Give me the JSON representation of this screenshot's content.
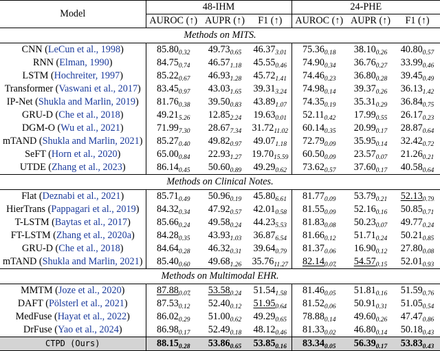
{
  "header": {
    "model": "Model",
    "group1": "48-IHM",
    "group2": "24-PHE",
    "metrics": [
      "AUROC (↑)",
      "AUPR (↑)",
      "F1 (↑)",
      "AUROC (↑)",
      "AUPR (↑)",
      "F1 (↑)"
    ]
  },
  "sections": [
    {
      "title": "Methods on MITS.",
      "rows": [
        {
          "name": "CNN",
          "cite": "LeCun et al., 1998",
          "cells": [
            [
              "85.80",
              "0.32"
            ],
            [
              "49.73",
              "0.65"
            ],
            [
              "46.37",
              "3.01"
            ],
            [
              "75.36",
              "0.18"
            ],
            [
              "38.10",
              "0.26"
            ],
            [
              "40.80",
              "0.57"
            ]
          ]
        },
        {
          "name": "RNN",
          "cite": "Elman, 1990",
          "cells": [
            [
              "84.75",
              "0.74"
            ],
            [
              "46.57",
              "1.18"
            ],
            [
              "45.55",
              "0.46"
            ],
            [
              "74.90",
              "0.34"
            ],
            [
              "36.76",
              "0.27"
            ],
            [
              "33.99",
              "0.46"
            ]
          ]
        },
        {
          "name": "LSTM",
          "cite": "Hochreiter, 1997",
          "cells": [
            [
              "85.22",
              "0.67"
            ],
            [
              "46.93",
              "1.28"
            ],
            [
              "45.72",
              "1.41"
            ],
            [
              "74.46",
              "0.23"
            ],
            [
              "36.80",
              "0.28"
            ],
            [
              "39.45",
              "0.49"
            ]
          ]
        },
        {
          "name": "Transformer",
          "cite": "Vaswani et al., 2017",
          "cells": [
            [
              "83.45",
              "0.97"
            ],
            [
              "43.03",
              "1.65"
            ],
            [
              "39.31",
              "3.24"
            ],
            [
              "74.98",
              "0.14"
            ],
            [
              "39.37",
              "0.26"
            ],
            [
              "36.13",
              "1.42"
            ]
          ]
        },
        {
          "name": "IP-Net",
          "cite": "Shukla and Marlin, 2019",
          "cells": [
            [
              "81.76",
              "0.38"
            ],
            [
              "39.50",
              "0.83"
            ],
            [
              "43.89",
              "1.07"
            ],
            [
              "74.35",
              "0.19"
            ],
            [
              "35.31",
              "0.29"
            ],
            [
              "36.84",
              "0.75"
            ]
          ]
        },
        {
          "name": "GRU-D",
          "cite": "Che et al., 2018",
          "cells": [
            [
              "49.21",
              "5.26"
            ],
            [
              "12.85",
              "2.24"
            ],
            [
              "19.63",
              "0.01"
            ],
            [
              "52.11",
              "0.42"
            ],
            [
              "17.99",
              "0.55"
            ],
            [
              "26.17",
              "0.23"
            ]
          ]
        },
        {
          "name": "DGM-O",
          "cite": "Wu et al., 2021",
          "cells": [
            [
              "71.99",
              "7.30"
            ],
            [
              "28.67",
              "7.34"
            ],
            [
              "31.72",
              "11.02"
            ],
            [
              "60.14",
              "0.35"
            ],
            [
              "20.99",
              "0.17"
            ],
            [
              "28.87",
              "0.64"
            ]
          ]
        },
        {
          "name": "mTAND",
          "cite": "Shukla and Marlin, 2021",
          "cells": [
            [
              "85.27",
              "0.40"
            ],
            [
              "49.82",
              "0.97"
            ],
            [
              "49.07",
              "1.18"
            ],
            [
              "72.79",
              "0.09"
            ],
            [
              "35.95",
              "0.14"
            ],
            [
              "32.42",
              "0.72"
            ]
          ]
        },
        {
          "name": "SeFT",
          "cite": "Horn et al., 2020",
          "cells": [
            [
              "65.00",
              "0.84"
            ],
            [
              "22.93",
              "1.27"
            ],
            [
              "19.70",
              "15.59"
            ],
            [
              "60.50",
              "0.09"
            ],
            [
              "23.57",
              "0.07"
            ],
            [
              "21.26",
              "0.21"
            ]
          ]
        },
        {
          "name": "UTDE",
          "cite": "Zhang et al., 2023",
          "cells": [
            [
              "86.14",
              "0.45"
            ],
            [
              "50.60",
              "0.89"
            ],
            [
              "49.29",
              "0.62"
            ],
            [
              "73.62",
              "0.57"
            ],
            [
              "37.60",
              "0.17"
            ],
            [
              "40.58",
              "0.64"
            ]
          ]
        }
      ]
    },
    {
      "title": "Methods on Clinical Notes.",
      "rows": [
        {
          "name": "Flat",
          "cite": "Deznabi et al., 2021",
          "cells": [
            [
              "85.71",
              "0.49"
            ],
            [
              "50.96",
              "0.19"
            ],
            [
              "45.80",
              "6.61"
            ],
            [
              "81.77",
              "0.09"
            ],
            [
              "53.79",
              "0.21"
            ],
            [
              "52.13",
              "0.79",
              "u"
            ]
          ]
        },
        {
          "name": "HierTrans",
          "cite": "Pappagari et al., 2019",
          "cells": [
            [
              "84.32",
              "0.34"
            ],
            [
              "47.92",
              "0.57"
            ],
            [
              "42.01",
              "0.58"
            ],
            [
              "81.55",
              "0.09"
            ],
            [
              "52.16",
              "0.16"
            ],
            [
              "50.85",
              "0.71"
            ]
          ]
        },
        {
          "name": "T-LSTM",
          "cite": "Baytas et al., 2017",
          "cells": [
            [
              "85.66",
              "0.24"
            ],
            [
              "49.58",
              "0.24"
            ],
            [
              "44.23",
              "5.53"
            ],
            [
              "81.83",
              "0.08"
            ],
            [
              "50.23",
              "0.07"
            ],
            [
              "49.77",
              "0.24"
            ]
          ]
        },
        {
          "name": "FT-LSTM",
          "cite": "Zhang et al., 2020a",
          "cells": [
            [
              "84.28",
              "0.35"
            ],
            [
              "43.93",
              "1.03"
            ],
            [
              "36.87",
              "6.54"
            ],
            [
              "81.66",
              "0.12"
            ],
            [
              "51.71",
              "0.24"
            ],
            [
              "50.21",
              "0.85"
            ]
          ]
        },
        {
          "name": "GRU-D",
          "cite": "Che et al., 2018",
          "cells": [
            [
              "84.64",
              "0.28"
            ],
            [
              "46.32",
              "0.31"
            ],
            [
              "39.64",
              "0.79"
            ],
            [
              "81.37",
              "0.06"
            ],
            [
              "16.90",
              "0.12"
            ],
            [
              "27.80",
              "0.08"
            ]
          ]
        },
        {
          "name": "mTAND",
          "cite": "Shukla and Marlin, 2021",
          "cells": [
            [
              "85.40",
              "0.60"
            ],
            [
              "49.68",
              "1.26"
            ],
            [
              "35.76",
              "11.27"
            ],
            [
              "82.14",
              "0.07",
              "u"
            ],
            [
              "54.57",
              "0.15",
              "u"
            ],
            [
              "52.01",
              "0.93"
            ]
          ]
        }
      ]
    },
    {
      "title": "Methods on Multimodal EHR.",
      "rows": [
        {
          "name": "MMTM",
          "cite": "Joze et al., 2020",
          "cells": [
            [
              "87.88",
              "0.07",
              "u"
            ],
            [
              "53.58",
              "0.24",
              "u"
            ],
            [
              "51.54",
              "1.58"
            ],
            [
              "81.46",
              "0.05"
            ],
            [
              "51.81",
              "0.16"
            ],
            [
              "51.59",
              "0.76"
            ]
          ]
        },
        {
          "name": "DAFT",
          "cite": "Pölsterl et al., 2021",
          "cells": [
            [
              "87.53",
              "0.12"
            ],
            [
              "52.40",
              "0.12"
            ],
            [
              "51.95",
              "0.64",
              "u"
            ],
            [
              "81.52",
              "0.06"
            ],
            [
              "50.91",
              "0.31"
            ],
            [
              "51.05",
              "0.54"
            ]
          ]
        },
        {
          "name": "MedFuse",
          "cite": "Hayat et al., 2022",
          "cells": [
            [
              "86.02",
              "0.29"
            ],
            [
              "51.00",
              "0.62"
            ],
            [
              "49.29",
              "0.65"
            ],
            [
              "78.88",
              "0.14"
            ],
            [
              "49.60",
              "0.26"
            ],
            [
              "47.47",
              "0.86"
            ]
          ]
        },
        {
          "name": "DrFuse",
          "cite": "Yao et al., 2024",
          "cells": [
            [
              "86.98",
              "0.17"
            ],
            [
              "52.49",
              "0.18"
            ],
            [
              "48.12",
              "0.46"
            ],
            [
              "81.33",
              "0.02"
            ],
            [
              "46.80",
              "0.14"
            ],
            [
              "50.18",
              "0.43"
            ]
          ]
        }
      ]
    }
  ],
  "ours": {
    "name": "CTPD (Ours)",
    "cells": [
      [
        "88.15",
        "0.28"
      ],
      [
        "53.86",
        "0.65"
      ],
      [
        "53.85",
        "0.16"
      ],
      [
        "83.34",
        "0.05"
      ],
      [
        "56.39",
        "0.17"
      ],
      [
        "53.83",
        "0.43"
      ]
    ],
    "row_color": "#d4d4d4"
  },
  "colors": {
    "citation": "#1a3a9c",
    "highlight_row": "#d4d4d4"
  }
}
